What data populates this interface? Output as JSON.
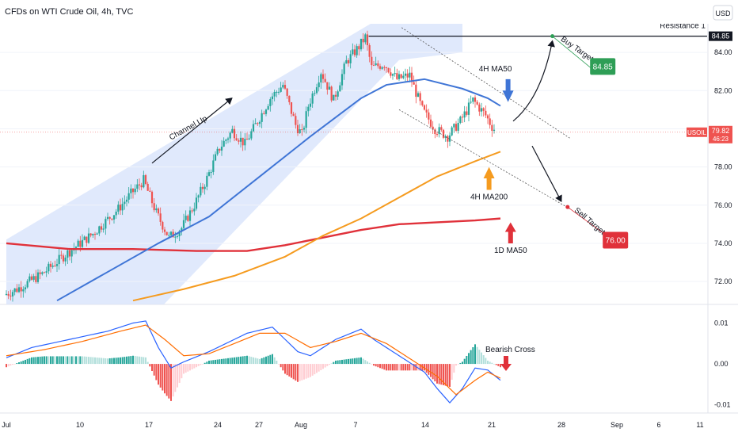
{
  "header": {
    "title": "CFDs on WTI Crude Oil, 4h, TVC",
    "currency": "USD"
  },
  "chart_data": [
    {
      "type": "candlestick",
      "symbol": "USOIL",
      "ylim": [
        70.8,
        85.5
      ],
      "y_ticks": [
        "84.00",
        "82.00",
        "80.00",
        "78.00",
        "76.00",
        "74.00",
        "72.00"
      ],
      "x_ticks": [
        "Jul",
        "10",
        "17",
        "24",
        "27",
        "Aug",
        "7",
        "14",
        "21",
        "28",
        "Sep",
        "6",
        "11"
      ],
      "last_price": "79.82",
      "countdown": "46:23",
      "resistance": {
        "label": "Resistance 1",
        "value": "84.85"
      },
      "ohlc_anchors": [
        {
          "day": 0,
          "price": 71.3
        },
        {
          "day": 1,
          "price": 71.6
        },
        {
          "day": 3,
          "price": 72.4
        },
        {
          "day": 5,
          "price": 73.5
        },
        {
          "day": 7,
          "price": 74.5
        },
        {
          "day": 9,
          "price": 75.8
        },
        {
          "day": 10,
          "price": 76.6
        },
        {
          "day": 11,
          "price": 77.3
        },
        {
          "day": 12,
          "price": 75.6
        },
        {
          "day": 13,
          "price": 74.3
        },
        {
          "day": 14,
          "price": 74.8
        },
        {
          "day": 15,
          "price": 76.0
        },
        {
          "day": 16,
          "price": 77.4
        },
        {
          "day": 17,
          "price": 79.0
        },
        {
          "day": 18,
          "price": 79.9
        },
        {
          "day": 19,
          "price": 79.2
        },
        {
          "day": 20,
          "price": 80.4
        },
        {
          "day": 21,
          "price": 81.6
        },
        {
          "day": 22,
          "price": 82.3
        },
        {
          "day": 23,
          "price": 80.2
        },
        {
          "day": 23.5,
          "price": 79.7
        },
        {
          "day": 24,
          "price": 81.2
        },
        {
          "day": 25,
          "price": 83.0
        },
        {
          "day": 26,
          "price": 81.5
        },
        {
          "day": 27,
          "price": 83.5
        },
        {
          "day": 28,
          "price": 84.3
        },
        {
          "day": 28.5,
          "price": 84.8
        },
        {
          "day": 29,
          "price": 83.2
        },
        {
          "day": 30,
          "price": 83.4
        },
        {
          "day": 31,
          "price": 82.6
        },
        {
          "day": 32,
          "price": 82.8
        },
        {
          "day": 33,
          "price": 81.0
        },
        {
          "day": 34,
          "price": 80.0
        },
        {
          "day": 35,
          "price": 79.6
        },
        {
          "day": 36,
          "price": 80.4
        },
        {
          "day": 37,
          "price": 81.5
        },
        {
          "day": 38,
          "price": 80.7
        },
        {
          "day": 38.6,
          "price": 80.0
        }
      ],
      "ma_4h_ma50": [
        [
          4,
          71.0
        ],
        [
          8,
          72.5
        ],
        [
          12,
          74.0
        ],
        [
          16,
          75.4
        ],
        [
          20,
          77.5
        ],
        [
          24,
          79.6
        ],
        [
          28,
          81.6
        ],
        [
          30,
          82.3
        ],
        [
          33,
          82.6
        ],
        [
          36,
          82.1
        ],
        [
          38,
          81.6
        ],
        [
          39,
          81.2
        ]
      ],
      "ma_4h_ma200": [
        [
          10,
          71.0
        ],
        [
          14,
          71.6
        ],
        [
          18,
          72.3
        ],
        [
          22,
          73.3
        ],
        [
          25,
          74.4
        ],
        [
          28,
          75.3
        ],
        [
          31,
          76.4
        ],
        [
          34,
          77.5
        ],
        [
          37,
          78.3
        ],
        [
          39,
          78.8
        ]
      ],
      "ma_1d_ma50": [
        [
          0,
          74.0
        ],
        [
          5,
          73.7
        ],
        [
          10,
          73.7
        ],
        [
          15,
          73.6
        ],
        [
          19,
          73.6
        ],
        [
          22,
          73.9
        ],
        [
          25,
          74.3
        ],
        [
          28,
          74.7
        ],
        [
          31,
          75.0
        ],
        [
          34,
          75.1
        ],
        [
          37,
          75.2
        ],
        [
          39,
          75.3
        ]
      ],
      "channel_up_label": "Channel Up",
      "annotations": [
        {
          "label": "4H MA50"
        },
        {
          "label": "4H MA200"
        },
        {
          "label": "1D MA50"
        },
        {
          "label": "Buy Target",
          "badge": "84.85"
        },
        {
          "label": "Sell Target",
          "badge": "76.00"
        }
      ]
    },
    {
      "type": "macd",
      "ylim": [
        -0.012,
        0.013
      ],
      "y_ticks": [
        "0.01",
        "0.00",
        "-0.01"
      ],
      "annotation": "Bearish Cross",
      "macd_line": [
        [
          0,
          0.0015
        ],
        [
          2,
          0.004
        ],
        [
          5,
          0.006
        ],
        [
          8,
          0.008
        ],
        [
          10,
          0.01
        ],
        [
          11,
          0.0105
        ],
        [
          12,
          0.004
        ],
        [
          13,
          -0.001
        ],
        [
          14,
          0.0005
        ],
        [
          16,
          0.003
        ],
        [
          18,
          0.006
        ],
        [
          19,
          0.0075
        ],
        [
          21,
          0.009
        ],
        [
          23,
          0.003
        ],
        [
          24,
          0.002
        ],
        [
          26,
          0.006
        ],
        [
          28,
          0.0085
        ],
        [
          29,
          0.006
        ],
        [
          31,
          0.002
        ],
        [
          33,
          -0.002
        ],
        [
          34,
          -0.006
        ],
        [
          35,
          -0.0095
        ],
        [
          36,
          -0.006
        ],
        [
          37,
          -0.001
        ],
        [
          38,
          -0.0015
        ],
        [
          39,
          -0.004
        ]
      ],
      "signal_line": [
        [
          0,
          0.002
        ],
        [
          3,
          0.0035
        ],
        [
          6,
          0.0055
        ],
        [
          9,
          0.008
        ],
        [
          11,
          0.0095
        ],
        [
          12.5,
          0.006
        ],
        [
          14,
          0.002
        ],
        [
          16,
          0.0025
        ],
        [
          18,
          0.005
        ],
        [
          20,
          0.0075
        ],
        [
          22,
          0.0075
        ],
        [
          24,
          0.004
        ],
        [
          26,
          0.0055
        ],
        [
          28,
          0.0075
        ],
        [
          30,
          0.005
        ],
        [
          32,
          0.001
        ],
        [
          34,
          -0.003
        ],
        [
          35.5,
          -0.0075
        ],
        [
          37,
          -0.004
        ],
        [
          38,
          -0.002
        ],
        [
          39,
          -0.0035
        ]
      ]
    }
  ],
  "colors": {
    "up": "#26a69a",
    "down": "#ef5350",
    "ma50_4h": "#3f75d6",
    "ma200_4h": "#f59b1f",
    "ma50_1d": "#e0313a",
    "channel": "#dbe5fb",
    "buy": "#2e9e56",
    "sell": "#e0313a",
    "macd": "#2962ff",
    "signal": "#ff6d00"
  }
}
